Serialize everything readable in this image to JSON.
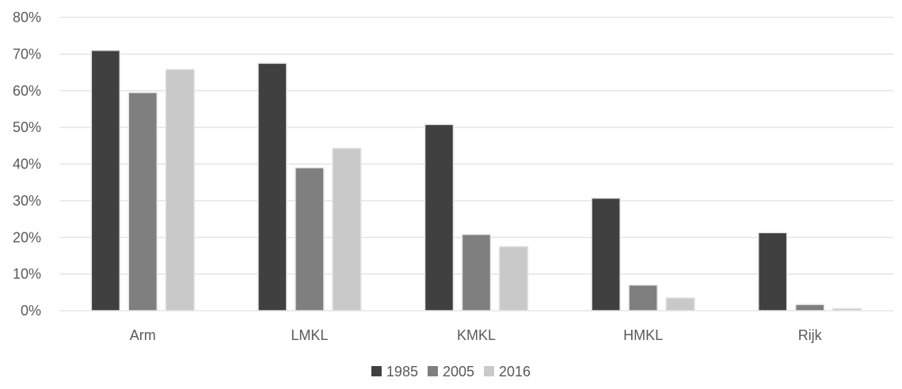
{
  "chart_data": {
    "type": "bar",
    "title": "",
    "xlabel": "",
    "ylabel": "",
    "categories": [
      "Arm",
      "LMKL",
      "KMKL",
      "HMKL",
      "Rijk"
    ],
    "series": [
      {
        "name": "1985",
        "values": [
          0.71,
          0.675,
          0.508,
          0.307,
          0.213
        ]
      },
      {
        "name": "2005",
        "values": [
          0.595,
          0.39,
          0.208,
          0.07,
          0.017
        ]
      },
      {
        "name": "2016",
        "values": [
          0.658,
          0.443,
          0.175,
          0.035,
          0.006
        ]
      }
    ],
    "ylim": [
      0,
      0.8
    ],
    "yticks": [
      {
        "value": 0,
        "label": "0%"
      },
      {
        "value": 0.1,
        "label": "10%"
      },
      {
        "value": 0.2,
        "label": "20%"
      },
      {
        "value": 0.3,
        "label": "30%"
      },
      {
        "value": 0.4,
        "label": "40%"
      },
      {
        "value": 0.5,
        "label": "50%"
      },
      {
        "value": 0.6,
        "label": "60%"
      },
      {
        "value": 0.7,
        "label": "70%"
      },
      {
        "value": 0.8,
        "label": "80%"
      }
    ],
    "grid": true,
    "legend": "bottom-center",
    "colors": {
      "1985": "#404040",
      "2005": "#7f7f7f",
      "2016": "#c9c9c9",
      "gridline": "#d9d9d9",
      "axis_text": "#595959"
    }
  }
}
